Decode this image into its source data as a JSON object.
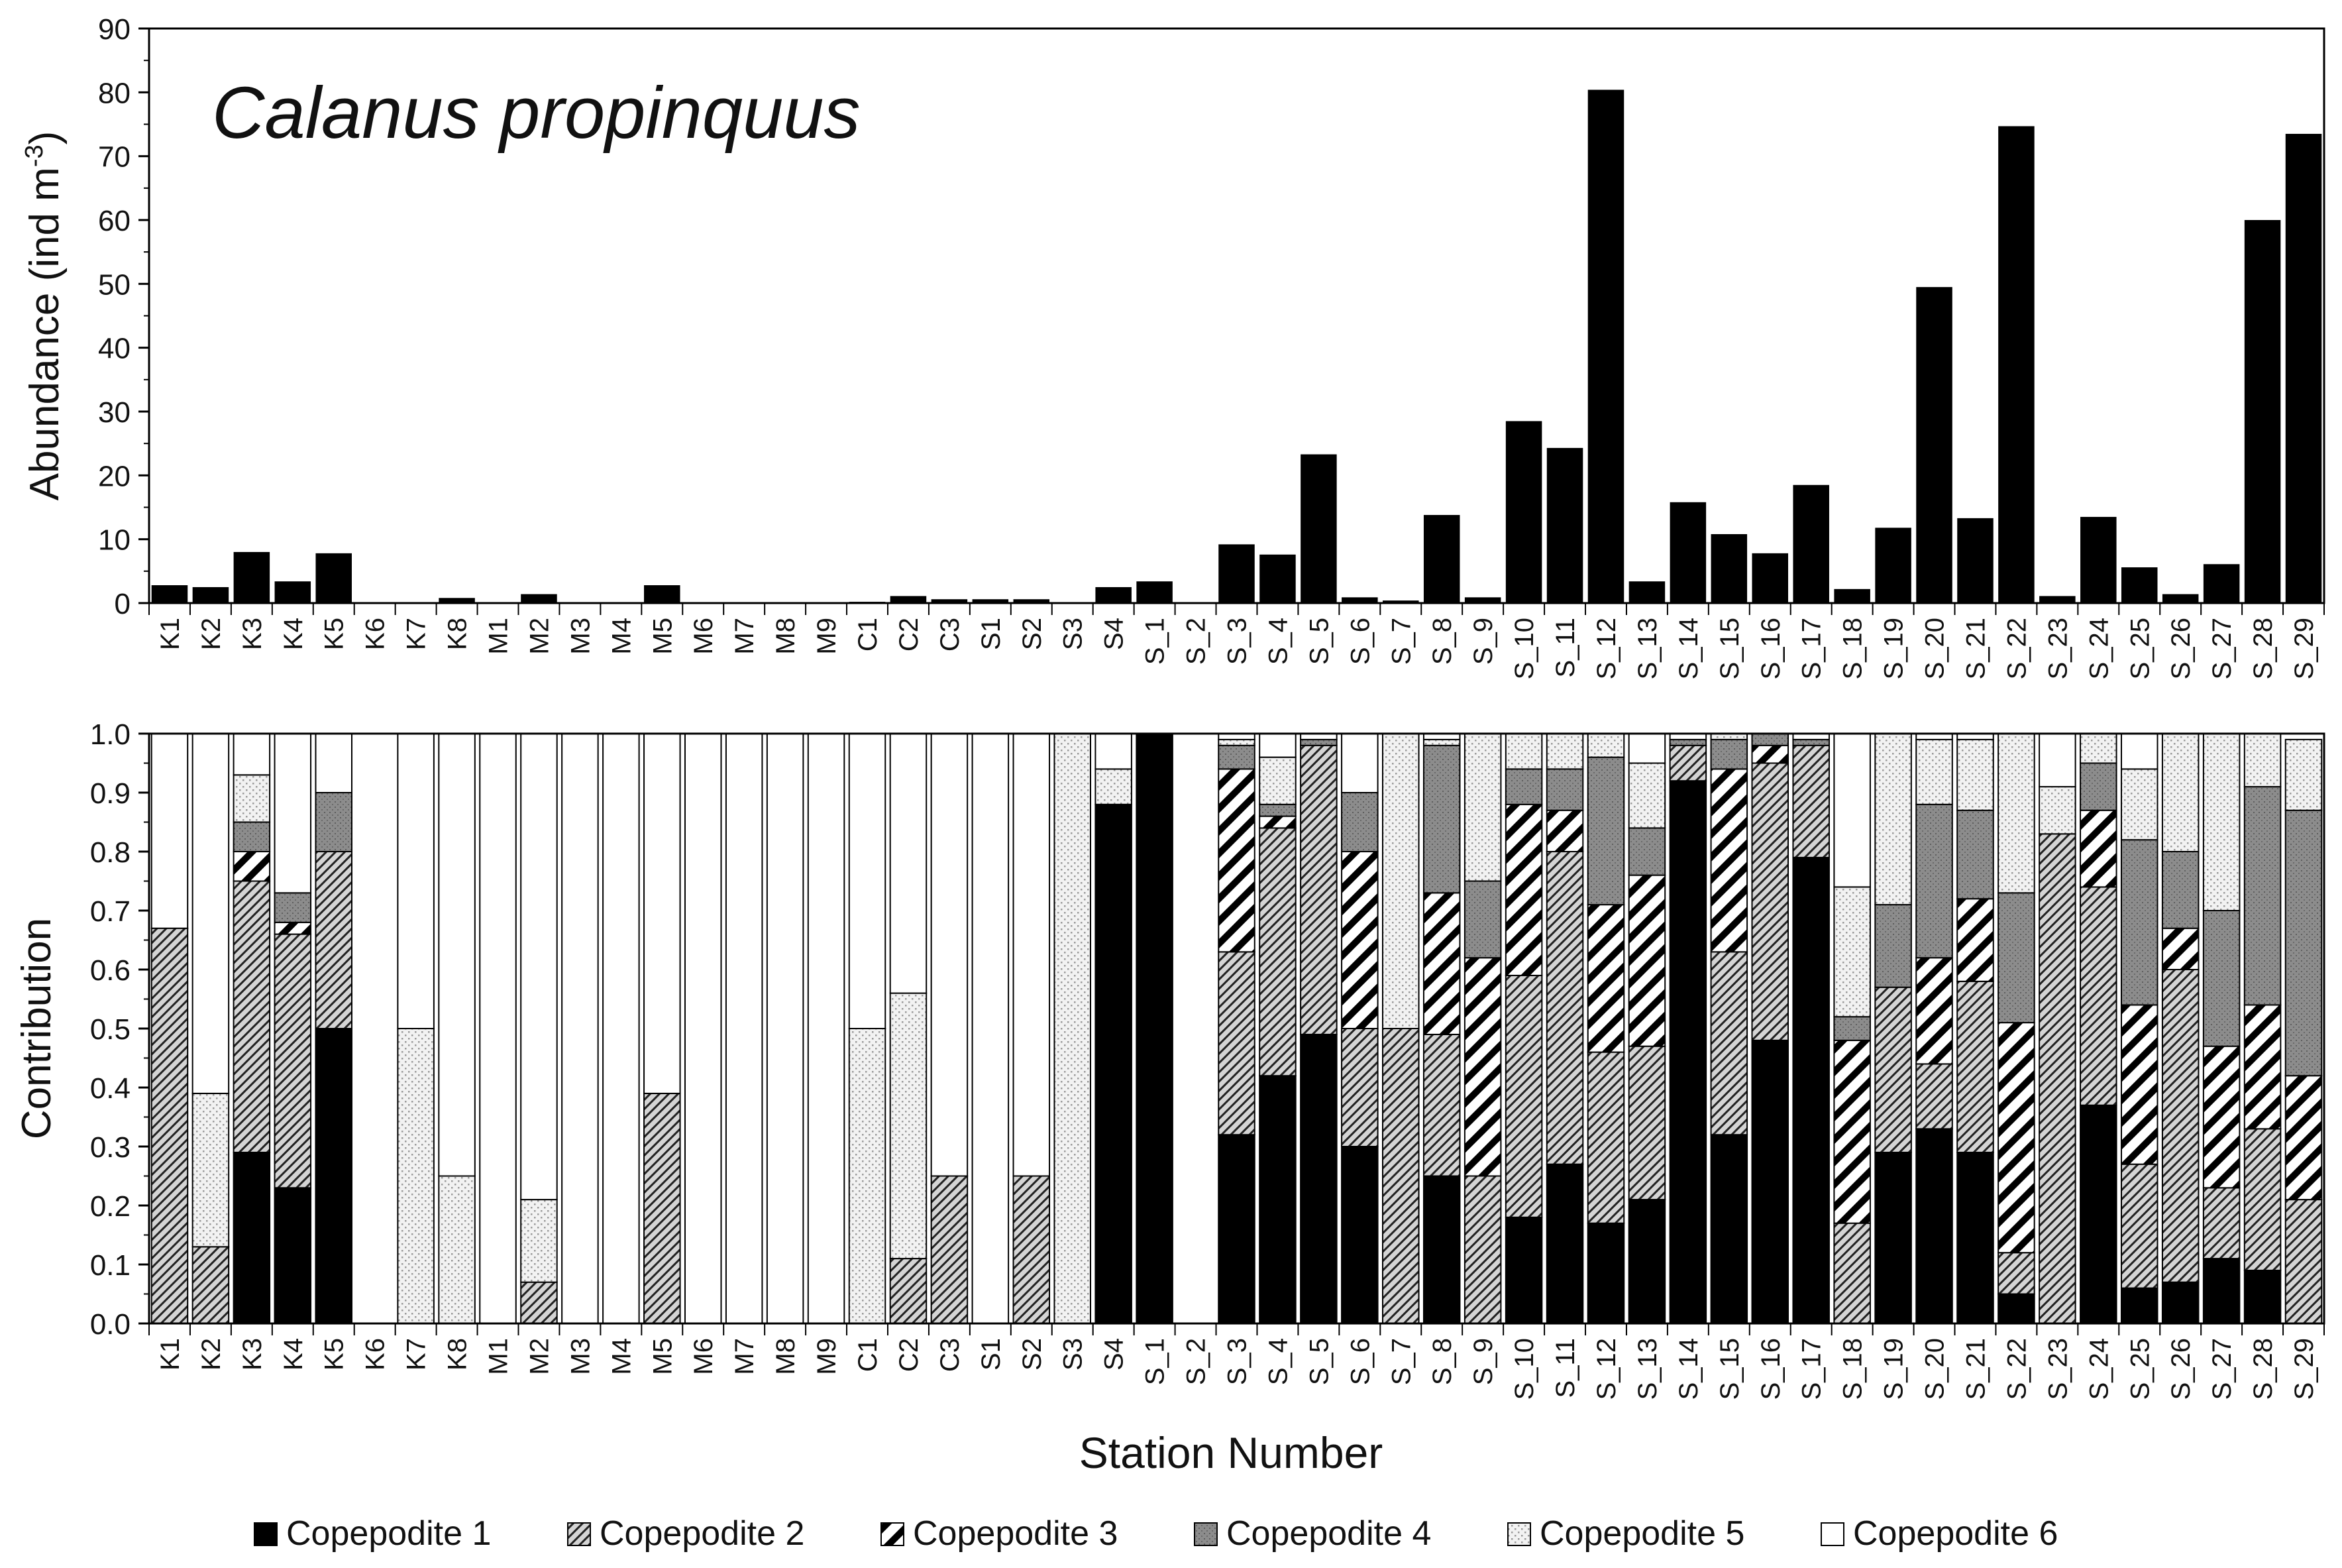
{
  "figure": {
    "xlabel": "Station Number"
  },
  "chart_data": [
    {
      "type": "bar",
      "title": "Calanus propinquus",
      "ylabel": "Abundance (ind m⁻³)",
      "ylim": [
        0,
        90
      ],
      "yticks": [
        0,
        10,
        20,
        30,
        40,
        50,
        60,
        70,
        80,
        90
      ],
      "grid": false,
      "categories": [
        "K1",
        "K2",
        "K3",
        "K4",
        "K5",
        "K6",
        "K7",
        "K8",
        "M1",
        "M2",
        "M3",
        "M4",
        "M5",
        "M6",
        "M7",
        "M8",
        "M9",
        "C1",
        "C2",
        "C3",
        "S1",
        "S2",
        "S3",
        "S4",
        "S_1",
        "S_2",
        "S_3",
        "S_4",
        "S_5",
        "S_6",
        "S_7",
        "S_8",
        "S_9",
        "S_10",
        "S_11",
        "S_12",
        "S_13",
        "S_14",
        "S_15",
        "S_16",
        "S_17",
        "S_18",
        "S_19",
        "S_20",
        "S_21",
        "S_22",
        "S_23",
        "S_24",
        "S_25",
        "S_26",
        "S_27",
        "S_28",
        "S_29"
      ],
      "values": [
        2.8,
        2.5,
        8.0,
        3.4,
        7.8,
        0,
        0.1,
        0.8,
        0.1,
        1.4,
        0.1,
        0.1,
        2.8,
        0.1,
        0.1,
        0.1,
        0.1,
        0.2,
        1.1,
        0.6,
        0.6,
        0.6,
        0.1,
        2.5,
        3.4,
        0,
        9.2,
        7.6,
        23.3,
        0.9,
        0.4,
        13.8,
        0.9,
        28.5,
        24.3,
        80.4,
        3.4,
        15.8,
        10.8,
        7.8,
        18.5,
        2.2,
        11.8,
        49.5,
        13.3,
        74.7,
        1.1,
        13.5,
        5.6,
        1.4,
        6.1,
        60.0,
        73.5
      ]
    },
    {
      "type": "bar",
      "stacked": true,
      "ylabel": "Contribution",
      "ylim": [
        0,
        1
      ],
      "yticks": [
        "0.0",
        "0.1",
        "0.2",
        "0.3",
        "0.4",
        "0.5",
        "0.6",
        "0.7",
        "0.8",
        "0.9",
        "1.0"
      ],
      "grid": false,
      "legend": "bottom",
      "categories": [
        "K1",
        "K2",
        "K3",
        "K4",
        "K5",
        "K6",
        "K7",
        "K8",
        "M1",
        "M2",
        "M3",
        "M4",
        "M5",
        "M6",
        "M7",
        "M8",
        "M9",
        "C1",
        "C2",
        "C3",
        "S1",
        "S2",
        "S3",
        "S4",
        "S_1",
        "S_2",
        "S_3",
        "S_4",
        "S_5",
        "S_6",
        "S_7",
        "S_8",
        "S_9",
        "S_10",
        "S_11",
        "S_12",
        "S_13",
        "S_14",
        "S_15",
        "S_16",
        "S_17",
        "S_18",
        "S_19",
        "S_20",
        "S_21",
        "S_22",
        "S_23",
        "S_24",
        "S_25",
        "S_26",
        "S_27",
        "S_28",
        "S_29"
      ],
      "series": [
        {
          "name": "Copepodite 1",
          "values": [
            0,
            0,
            0.29,
            0.23,
            0.5,
            0,
            0,
            0,
            0,
            0,
            0,
            0,
            0,
            0,
            0,
            0,
            0,
            0,
            0,
            0,
            0,
            0,
            0,
            0.88,
            1.0,
            0,
            0.32,
            0.42,
            0.49,
            0.3,
            0,
            0.25,
            0,
            0.18,
            0.27,
            0.17,
            0.21,
            0.92,
            0.32,
            0.48,
            0.79,
            0,
            0.29,
            0.33,
            0.29,
            0.05,
            0,
            0.37,
            0.06,
            0.07,
            0.11,
            0.09,
            0
          ]
        },
        {
          "name": "Copepodite 2",
          "values": [
            0.67,
            0.13,
            0.46,
            0.43,
            0.3,
            0,
            0,
            0,
            0,
            0.07,
            0,
            0,
            0.39,
            0,
            0,
            0,
            0,
            0,
            0.11,
            0.25,
            0,
            0.25,
            0,
            0,
            0,
            0,
            0.31,
            0.42,
            0.49,
            0.2,
            0.5,
            0.24,
            0.25,
            0.41,
            0.53,
            0.29,
            0.26,
            0.06,
            0.31,
            0.47,
            0.19,
            0.17,
            0.28,
            0.11,
            0.29,
            0.07,
            0.83,
            0.37,
            0.21,
            0.53,
            0.12,
            0.24,
            0.21
          ]
        },
        {
          "name": "Copepodite 3",
          "values": [
            0,
            0,
            0.05,
            0.02,
            0,
            0,
            0,
            0,
            0,
            0,
            0,
            0,
            0,
            0,
            0,
            0,
            0,
            0,
            0,
            0,
            0,
            0,
            0,
            0,
            0,
            0,
            0.31,
            0.02,
            0,
            0.3,
            0,
            0.24,
            0.37,
            0.29,
            0.07,
            0.25,
            0.29,
            0,
            0.31,
            0.03,
            0,
            0.31,
            0,
            0.18,
            0.14,
            0.39,
            0,
            0.13,
            0.27,
            0.07,
            0.24,
            0.21,
            0.21
          ]
        },
        {
          "name": "Copepodite 4",
          "values": [
            0,
            0,
            0.05,
            0.05,
            0.1,
            0,
            0,
            0,
            0,
            0,
            0,
            0,
            0,
            0,
            0,
            0,
            0,
            0,
            0,
            0,
            0,
            0,
            0,
            0,
            0,
            0,
            0.04,
            0.02,
            0.01,
            0.1,
            0,
            0.25,
            0.13,
            0.06,
            0.07,
            0.25,
            0.08,
            0.01,
            0.05,
            0.03,
            0.01,
            0.04,
            0.14,
            0.26,
            0.15,
            0.22,
            0,
            0.08,
            0.28,
            0.13,
            0.23,
            0.37,
            0.45
          ]
        },
        {
          "name": "Copepodite 5",
          "values": [
            0,
            0.26,
            0.08,
            0,
            0,
            0,
            0.5,
            0.25,
            0,
            0.14,
            0,
            0,
            0,
            0,
            0,
            0,
            0,
            0.5,
            0.45,
            0,
            0,
            0,
            1.0,
            0.06,
            0,
            0,
            0.01,
            0.08,
            0,
            0,
            0.5,
            0.01,
            0.25,
            0.06,
            0.06,
            0.04,
            0.11,
            0,
            0.01,
            0.01,
            0,
            0.22,
            0.29,
            0.11,
            0.12,
            0.27,
            0.08,
            0.06,
            0.12,
            0.2,
            0.3,
            0.09,
            0.12
          ]
        },
        {
          "name": "Copepodite 6",
          "values": [
            0.33,
            0.61,
            0.07,
            0.27,
            0.1,
            0,
            0.5,
            0.75,
            1.0,
            0.79,
            1.0,
            1.0,
            0.61,
            1.0,
            1.0,
            1.0,
            1.0,
            0.5,
            0.44,
            0.75,
            1.0,
            0.75,
            0,
            0.06,
            0,
            0,
            0.01,
            0.04,
            0.01,
            0.1,
            0,
            0.01,
            0,
            0.01,
            0.01,
            0,
            0.05,
            0.01,
            0,
            0,
            0.01,
            0.26,
            0,
            0.01,
            0.01,
            0,
            0.09,
            0,
            0.06,
            0,
            0,
            0,
            0
          ]
        }
      ]
    }
  ],
  "colors": {
    "Copepodite 1": "#000000",
    "Copepodite 4": "#8a8a8a",
    "Copepodite 6": "#ffffff"
  },
  "patterns": {
    "Copepodite 2": "fine-diagonal-hatch",
    "Copepodite 3": "bold-diagonal-stripes",
    "Copepodite 5": "light-stipple"
  }
}
